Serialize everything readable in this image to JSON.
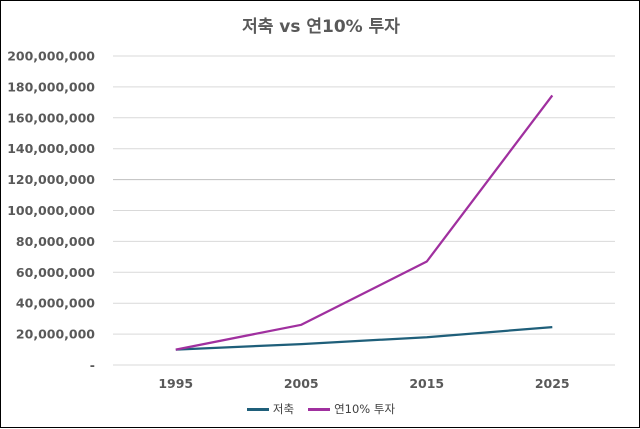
{
  "chart_data": {
    "type": "line",
    "title": "저축 vs 연10% 투자",
    "xlabel": "",
    "ylabel": "",
    "categories": [
      "1995",
      "2005",
      "2015",
      "2025"
    ],
    "series": [
      {
        "name": "저축",
        "values": [
          10000000,
          13500000,
          18000000,
          24500000
        ],
        "color": "#1f5f7a"
      },
      {
        "name": "연10% 투자",
        "values": [
          10000000,
          26000000,
          67000000,
          174500000
        ],
        "color": "#a0309f"
      }
    ],
    "ylim": [
      0,
      200000000
    ],
    "yticks": [
      0,
      20000000,
      40000000,
      60000000,
      80000000,
      100000000,
      120000000,
      140000000,
      160000000,
      180000000,
      200000000
    ],
    "ytick_labels": [
      "-",
      "20,000,000",
      "40,000,000",
      "60,000,000",
      "80,000,000",
      "100,000,000",
      "120,000,000",
      "140,000,000",
      "160,000,000",
      "180,000,000",
      "200,000,000"
    ],
    "grid": true,
    "legend": "bottom"
  }
}
